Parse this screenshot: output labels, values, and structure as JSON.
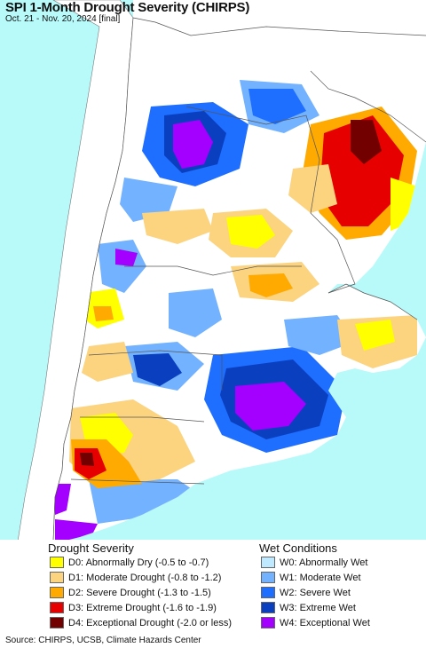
{
  "header": {
    "title": "SPI 1-Month Drought Severity (CHIRPS)",
    "subtitle": "Oct. 21 - Nov. 20, 2024 [final]"
  },
  "legend": {
    "drought_title": "Drought Severity",
    "wet_title": "Wet Conditions",
    "drought_items": [
      {
        "label": "D0: Abnormally Dry (-0.5 to -0.7)",
        "color": "#ffff00"
      },
      {
        "label": "D1: Moderate Drought (-0.8 to -1.2)",
        "color": "#fcd37f"
      },
      {
        "label": "D2: Severe Drought (-1.3 to -1.5)",
        "color": "#ffaa00"
      },
      {
        "label": "D3: Extreme Drought (-1.6 to -1.9)",
        "color": "#e60000"
      },
      {
        "label": "D4: Exceptional Drought (-2.0 or less)",
        "color": "#730000"
      }
    ],
    "wet_items": [
      {
        "label": "W0: Abnormally Wet",
        "color": "#bfe9ff"
      },
      {
        "label": "W1: Moderate Wet",
        "color": "#73b2ff"
      },
      {
        "label": "W2: Severe Wet",
        "color": "#1e6eff"
      },
      {
        "label": "W3: Extreme Wet",
        "color": "#0a3fbf"
      },
      {
        "label": "W4: Exceptional Wet",
        "color": "#a300ff"
      }
    ]
  },
  "footer": {
    "source": "Source: CHIRPS, UCSB, Climate Hazards Center"
  },
  "colors": {
    "ocean": "#b8fafa",
    "land_outside": "#ffffff",
    "border": "#555555"
  }
}
